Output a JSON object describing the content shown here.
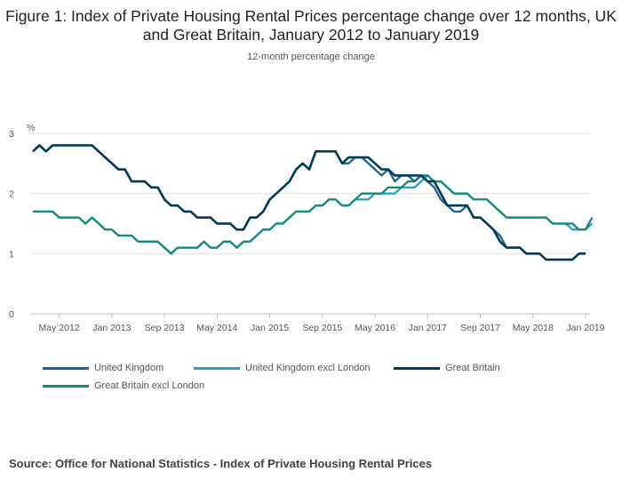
{
  "chart_data": {
    "type": "line",
    "title": "Figure 1: Index of Private Housing Rental Prices percentage change over 12 months, UK and Great Britain, January 2012 to January 2019",
    "subtitle": "12-month percentage change",
    "ylabel": "%",
    "ylim": [
      0,
      3
    ],
    "yticks": [
      0,
      1,
      2,
      3
    ],
    "x_start": "2012-01",
    "x_ticks": [
      {
        "index": 4,
        "label": "May 2012"
      },
      {
        "index": 12,
        "label": "Jan 2013"
      },
      {
        "index": 20,
        "label": "Sep 2013"
      },
      {
        "index": 28,
        "label": "May 2014"
      },
      {
        "index": 36,
        "label": "Jan 2015"
      },
      {
        "index": 44,
        "label": "Sep 2015"
      },
      {
        "index": 52,
        "label": "May 2016"
      },
      {
        "index": 60,
        "label": "Jan 2017"
      },
      {
        "index": 68,
        "label": "Sep 2017"
      },
      {
        "index": 76,
        "label": "May 2018"
      },
      {
        "index": 84,
        "label": "Jan 2019"
      }
    ],
    "grid": true,
    "legend_position": "bottom",
    "series": [
      {
        "name": "United Kingdom",
        "color": "#206095",
        "values": [
          2.7,
          2.8,
          2.7,
          2.8,
          2.8,
          2.8,
          2.8,
          2.8,
          2.8,
          2.8,
          2.7,
          2.6,
          2.5,
          2.4,
          2.4,
          2.2,
          2.2,
          2.2,
          2.1,
          2.1,
          1.9,
          1.8,
          1.8,
          1.7,
          1.7,
          1.6,
          1.6,
          1.6,
          1.5,
          1.5,
          1.5,
          1.4,
          1.4,
          1.6,
          1.6,
          1.7,
          1.9,
          2.0,
          2.1,
          2.2,
          2.4,
          2.5,
          2.4,
          2.7,
          2.7,
          2.7,
          2.7,
          2.5,
          2.5,
          2.6,
          2.6,
          2.5,
          2.4,
          2.3,
          2.4,
          2.2,
          2.3,
          2.3,
          2.2,
          2.3,
          2.2,
          2.1,
          1.9,
          1.8,
          1.7,
          1.7,
          1.8,
          1.6,
          1.6,
          1.5,
          1.4,
          1.3,
          1.1,
          1.1,
          1.1,
          1.0,
          1.0,
          1.0,
          0.9,
          0.9,
          0.9,
          0.9,
          0.9,
          1.0,
          1.0
        ]
      },
      {
        "name": "United Kingdom excl London",
        "color": "#27A0CC",
        "values": [
          1.7,
          1.7,
          1.7,
          1.7,
          1.6,
          1.6,
          1.6,
          1.6,
          1.5,
          1.6,
          1.5,
          1.4,
          1.4,
          1.3,
          1.3,
          1.3,
          1.2,
          1.2,
          1.2,
          1.2,
          1.1,
          1.0,
          1.1,
          1.1,
          1.1,
          1.1,
          1.2,
          1.1,
          1.1,
          1.2,
          1.2,
          1.1,
          1.2,
          1.2,
          1.3,
          1.4,
          1.4,
          1.5,
          1.5,
          1.6,
          1.7,
          1.7,
          1.7,
          1.8,
          1.8,
          1.9,
          1.9,
          1.8,
          1.8,
          1.9,
          1.9,
          1.9,
          2.0,
          2.0,
          2.0,
          2.0,
          2.1,
          2.1,
          2.1,
          2.2,
          2.3,
          2.2,
          2.2,
          2.1,
          2.0,
          2.0,
          2.0,
          1.9,
          1.9,
          1.9,
          1.8,
          1.7,
          1.6,
          1.6,
          1.6,
          1.6,
          1.6,
          1.6,
          1.6,
          1.5,
          1.5,
          1.5,
          1.4,
          1.4,
          1.4,
          1.5
        ]
      },
      {
        "name": "Great Britain",
        "color": "#003C57",
        "values": [
          2.7,
          2.8,
          2.7,
          2.8,
          2.8,
          2.8,
          2.8,
          2.8,
          2.8,
          2.8,
          2.7,
          2.6,
          2.5,
          2.4,
          2.4,
          2.2,
          2.2,
          2.2,
          2.1,
          2.1,
          1.9,
          1.8,
          1.8,
          1.7,
          1.7,
          1.6,
          1.6,
          1.6,
          1.5,
          1.5,
          1.5,
          1.4,
          1.4,
          1.6,
          1.6,
          1.7,
          1.9,
          2.0,
          2.1,
          2.2,
          2.4,
          2.5,
          2.4,
          2.7,
          2.7,
          2.7,
          2.7,
          2.5,
          2.6,
          2.6,
          2.6,
          2.6,
          2.5,
          2.4,
          2.4,
          2.3,
          2.3,
          2.3,
          2.3,
          2.3,
          2.2,
          2.2,
          2.0,
          1.8,
          1.8,
          1.8,
          1.8,
          1.6,
          1.6,
          1.5,
          1.4,
          1.2,
          1.1,
          1.1,
          1.1,
          1.0,
          1.0,
          1.0,
          0.9,
          0.9,
          0.9,
          0.9,
          0.9,
          1.0,
          1.0
        ]
      },
      {
        "name": "Great Britain excl London",
        "color": "#118C7B",
        "values": [
          1.7,
          1.7,
          1.7,
          1.7,
          1.6,
          1.6,
          1.6,
          1.6,
          1.5,
          1.6,
          1.5,
          1.4,
          1.4,
          1.3,
          1.3,
          1.3,
          1.2,
          1.2,
          1.2,
          1.2,
          1.1,
          1.0,
          1.1,
          1.1,
          1.1,
          1.1,
          1.2,
          1.1,
          1.1,
          1.2,
          1.2,
          1.1,
          1.2,
          1.2,
          1.3,
          1.4,
          1.4,
          1.5,
          1.5,
          1.6,
          1.7,
          1.7,
          1.7,
          1.8,
          1.8,
          1.9,
          1.9,
          1.8,
          1.8,
          1.9,
          2.0,
          2.0,
          2.0,
          2.0,
          2.1,
          2.1,
          2.1,
          2.2,
          2.2,
          2.3,
          2.3,
          2.2,
          2.2,
          2.1,
          2.0,
          2.0,
          2.0,
          1.9,
          1.9,
          1.9,
          1.8,
          1.7,
          1.6,
          1.6,
          1.6,
          1.6,
          1.6,
          1.6,
          1.6,
          1.5,
          1.5,
          1.5,
          1.5,
          1.4,
          1.4,
          1.6
        ]
      }
    ]
  },
  "source": "Source: Office for National Statistics - Index of Private Housing Rental Prices"
}
